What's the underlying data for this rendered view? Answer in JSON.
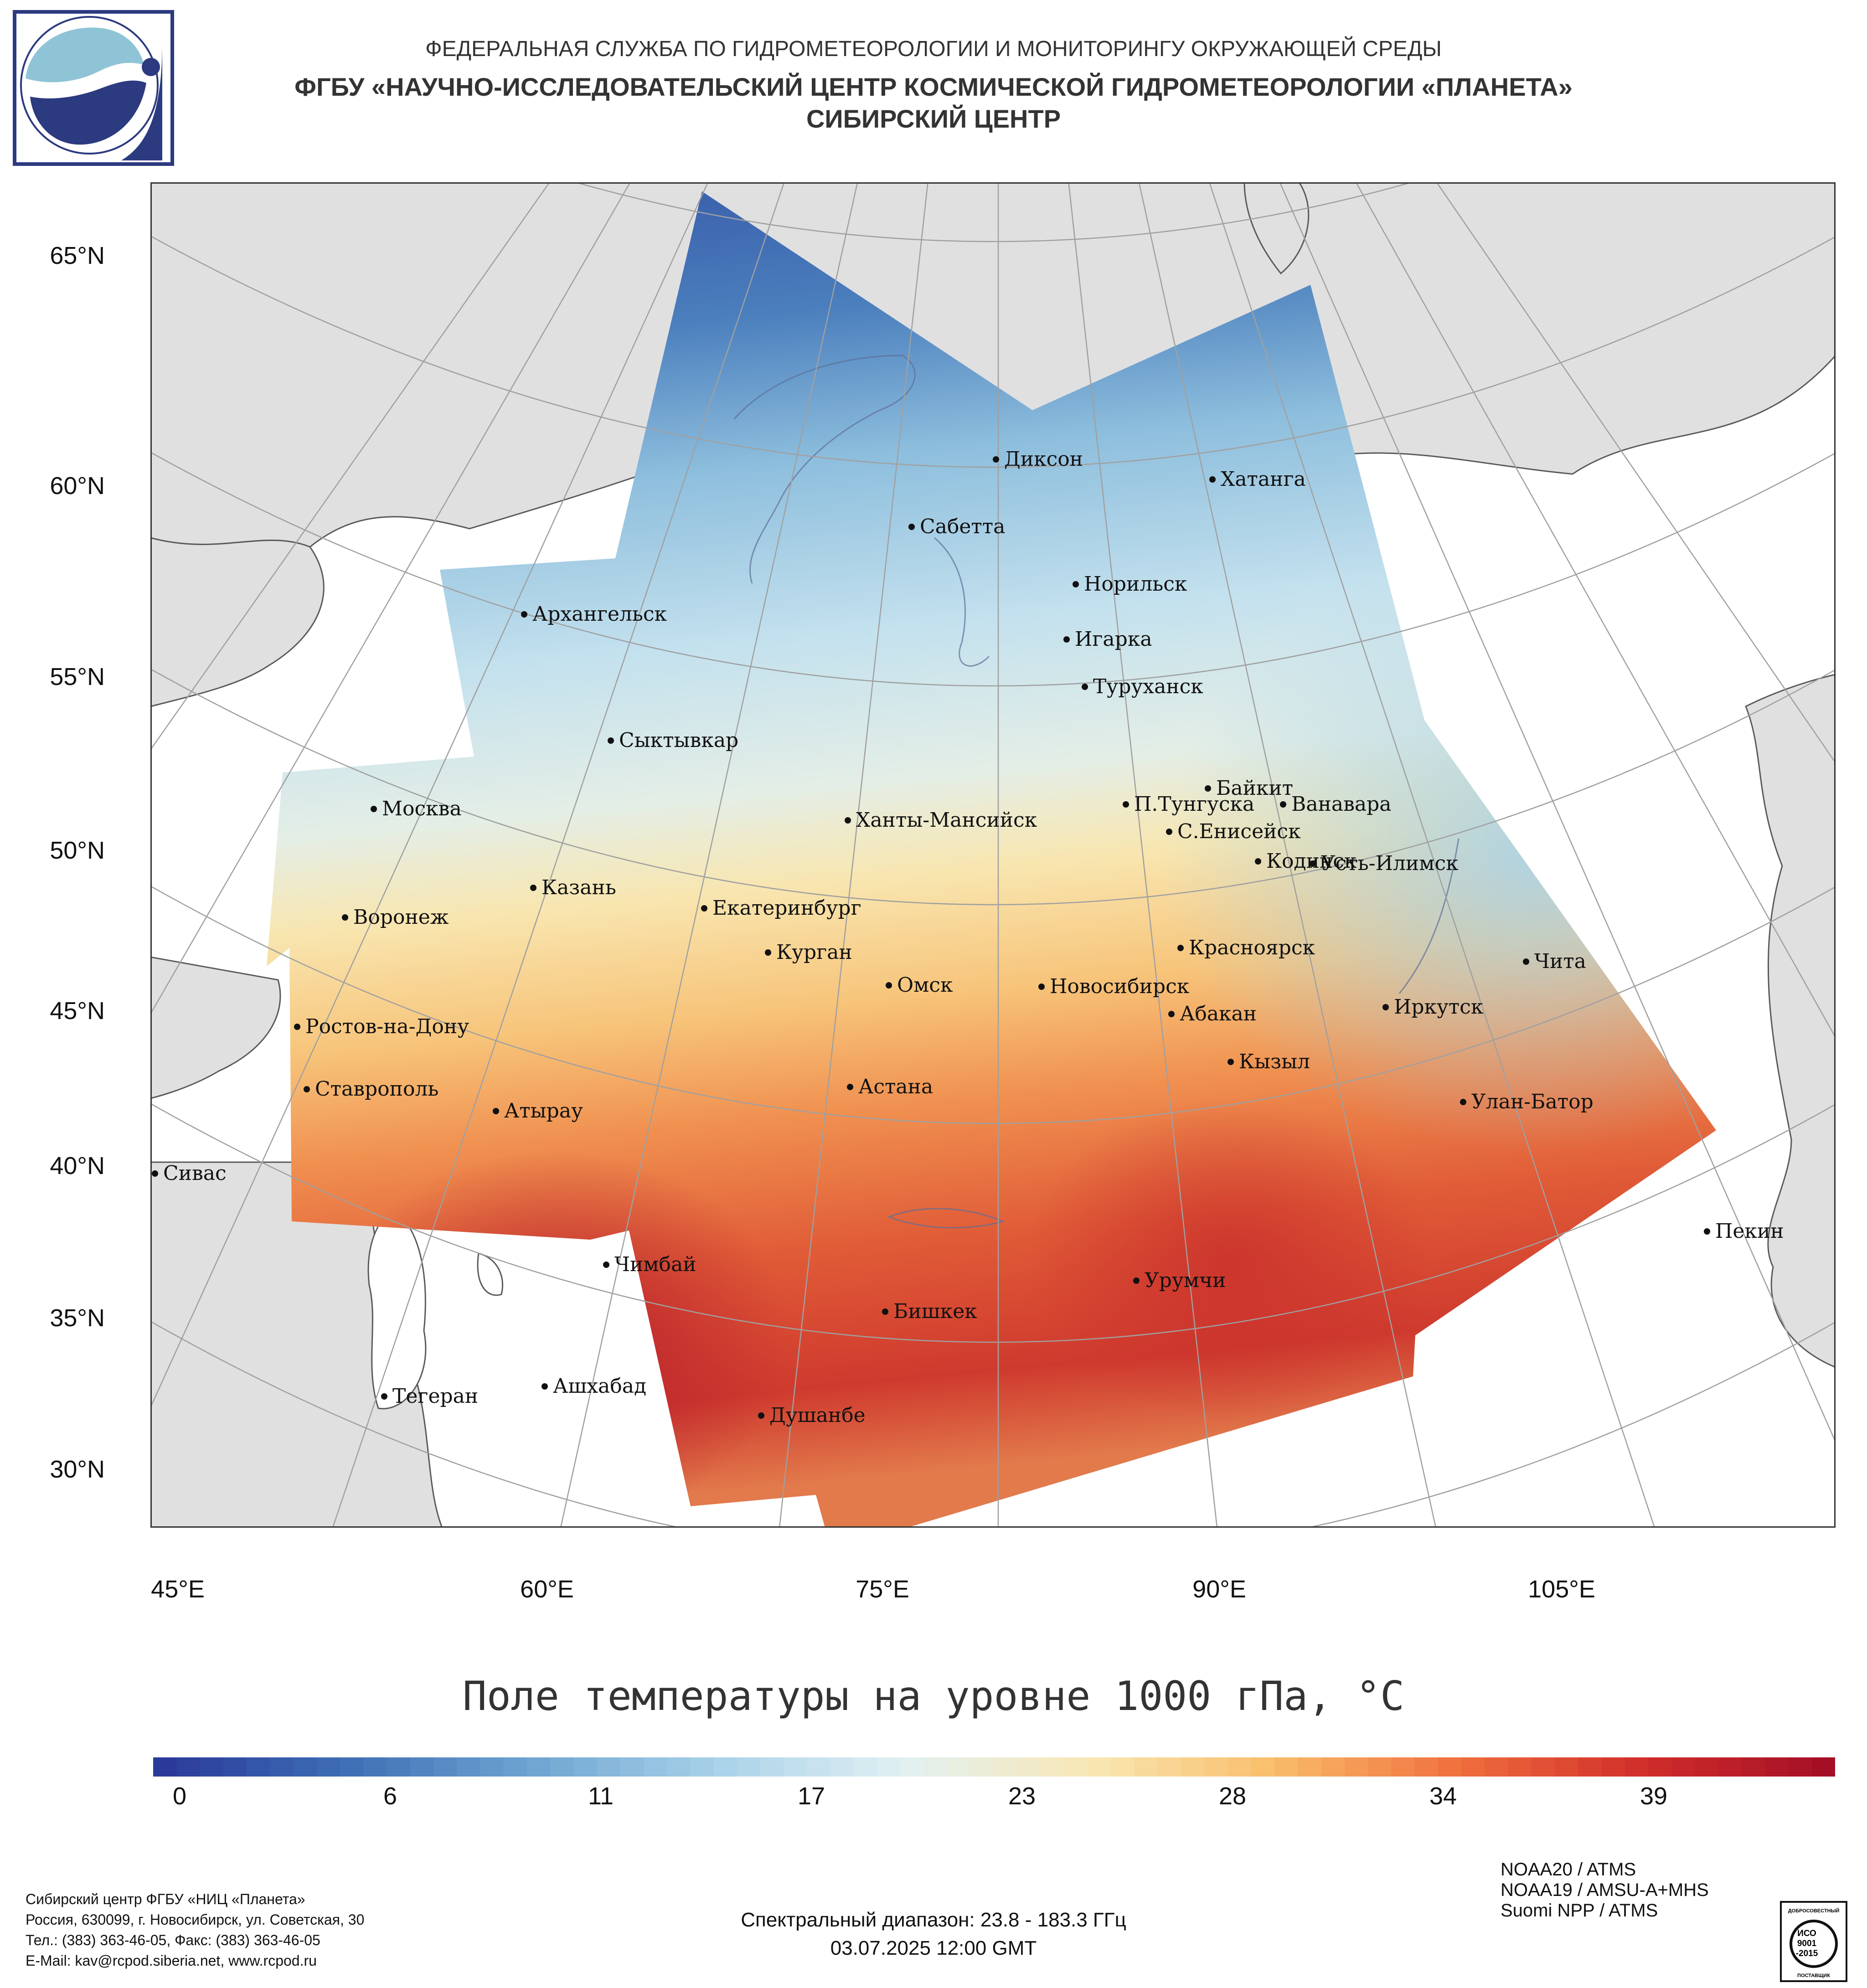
{
  "header": {
    "line1": "ФЕДЕРАЛЬНАЯ СЛУЖБА ПО ГИДРОМЕТЕОРОЛОГИИ И МОНИТОРИНГУ ОКРУЖАЮЩЕЙ СРЕДЫ",
    "line2": "ФГБУ «НАУЧНО-ИССЛЕДОВАТЕЛЬСКИЙ ЦЕНТР КОСМИЧЕСКОЙ ГИДРОМЕТЕОРОЛОГИИ «ПЛАНЕТА»",
    "line3": "СИБИРСКИЙ ЦЕНТР"
  },
  "map": {
    "lat_labels": [
      "65°N",
      "60°N",
      "55°N",
      "50°N",
      "45°N",
      "40°N",
      "35°N",
      "30°N"
    ],
    "lon_labels": [
      "45°E",
      "60°E",
      "75°E",
      "90°E",
      "105°E"
    ],
    "cities": [
      "Диксон",
      "Хатанга",
      "Сабетта",
      "Норильск",
      "Архангельск",
      "Игарка",
      "Туруханск",
      "Сыктывкар",
      "Байкит",
      "Москва",
      "П.Тунгуска",
      "Ванавара",
      "Ханты-Мансийск",
      "С.Енисейск",
      "Кодинск",
      "Усть-Илимск",
      "Казань",
      "Воронеж",
      "Екатеринбург",
      "Красноярск",
      "Курган",
      "Чита",
      "Омск",
      "Новосибирск",
      "Иркутск",
      "Абакан",
      "Ростов-на-Дону",
      "Кызыл",
      "Ставрополь",
      "Астана",
      "Улан-Батор",
      "Атырау",
      "Сивас",
      "Пекин",
      "Чимбай",
      "Урумчи",
      "Бишкек",
      "Ашхабад",
      "Тегеран",
      "Душанбе"
    ],
    "colors": {
      "land": "#e0e0e0",
      "sea": "#ffffff",
      "grid": "#a0a0a0",
      "coast": "#5a5a5a"
    }
  },
  "colorbar": {
    "title": "Поле температуры на уровне 1000 гПа, °C",
    "ticks": [
      "0",
      "6",
      "11",
      "17",
      "23",
      "28",
      "34",
      "39"
    ],
    "stops": [
      "#2b3a9a",
      "#3e6fb5",
      "#6fa5d2",
      "#a9d2e8",
      "#e1f0f4",
      "#f8e8b5",
      "#f9be6b",
      "#f0703e",
      "#d22f2b",
      "#a50f26"
    ]
  },
  "footer": {
    "address": [
      "Сибирский центр ФГБУ «НИЦ «Планета»",
      "Россия, 630099, г. Новосибирск, ул. Советская, 30",
      "Тел.: (383) 363-46-05, Факс: (383) 363-46-05",
      "E-Mail: kav@rcpod.siberia.net, www.rcpod.ru"
    ],
    "spectral": "Спектральный диапазон: 23.8 - 183.3 ГГц",
    "datetime": "03.07.2025 12:00 GMT",
    "satellites": [
      "NOAA20 / ATMS",
      "NOAA19 / AMSU-A+MHS",
      "Suomi NPP / ATMS"
    ],
    "iso": {
      "top": "ДОБРОСОВЕСТНЫЙ",
      "mid1": "ИСО",
      "mid2": "9001",
      "mid3": "-2015",
      "bottom": "ПОСТАВЩИК"
    }
  }
}
